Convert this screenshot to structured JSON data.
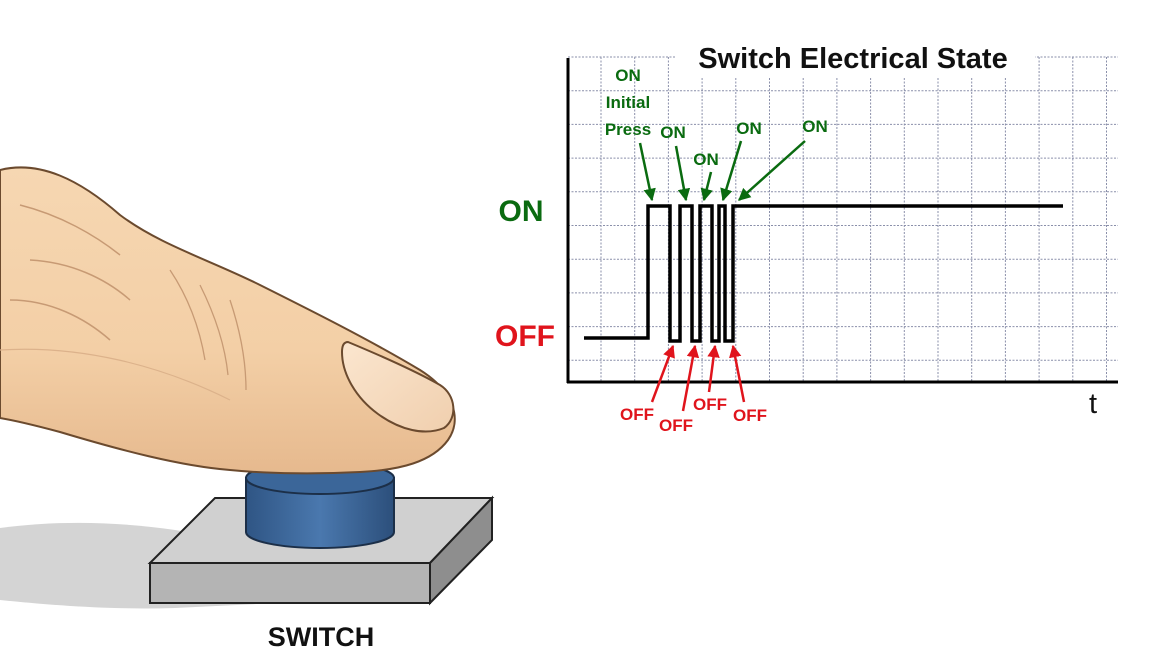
{
  "diagram": {
    "title": "Switch Electrical State",
    "switch_caption": "SWITCH",
    "y_states": {
      "on": "ON",
      "off": "OFF"
    },
    "x_axis_label": "t",
    "on_annotations": [
      {
        "line1": "ON",
        "line2": "Initial",
        "line3": "Press"
      },
      {
        "text": "ON"
      },
      {
        "text": "ON"
      },
      {
        "text": "ON"
      },
      {
        "text": "ON"
      }
    ],
    "off_annotations": [
      "OFF",
      "OFF",
      "OFF",
      "OFF"
    ],
    "colors": {
      "on_label": "#0a6b10",
      "off_label": "#e0141c",
      "signal": "#000000",
      "grid": "#8a8faa",
      "button_cap": "#3a6496",
      "switch_base": "#b9b9b9",
      "finger_skin": "#f3cfa8",
      "shadow": "#d2d2d2"
    }
  }
}
